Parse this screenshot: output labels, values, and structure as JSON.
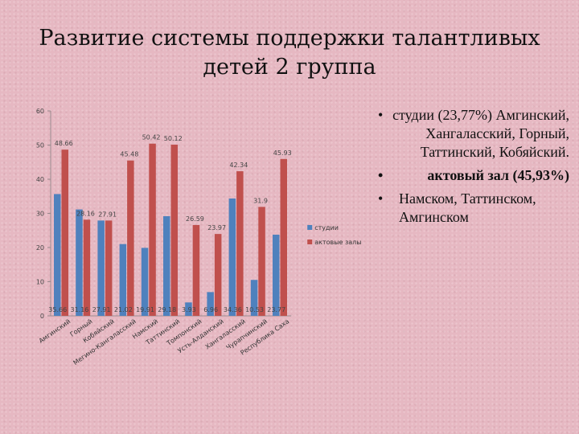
{
  "title": {
    "line1": "Развитие системы поддержки талантливых",
    "line2": "детей 2 группа"
  },
  "notes": [
    {
      "bullet": "•",
      "text": "студии (23,77%) Амгинский, Хангаласский, Горный, Таттинский, Кобяйский.",
      "bold": false
    },
    {
      "bullet": "•",
      "text": "актовый зал (45,93%)",
      "bold": true
    },
    {
      "bullet": "•",
      "text": "Намском, Таттинском, Амгинском",
      "bold": false
    }
  ],
  "colors": {
    "studios": "#4f81bd",
    "halls": "#c0504d",
    "axis": "#9a8a8e"
  },
  "chart_data": {
    "type": "bar",
    "categories": [
      "Амгинский",
      "Горный",
      "Кобяйский",
      "Мегино-Кангаласский",
      "Намский",
      "Таттинский",
      "Томпонский",
      "Усть-Алданский",
      "Хангаласский",
      "Чурапчинский",
      "Республика Саха"
    ],
    "series": [
      {
        "name": "студии",
        "color": "#4f81bd",
        "values": [
          35.66,
          31.16,
          27.91,
          21.02,
          19.91,
          29.18,
          3.93,
          6.96,
          34.36,
          10.53,
          23.77
        ]
      },
      {
        "name": "актовые залы",
        "color": "#c0504d",
        "values": [
          48.66,
          28.16,
          27.91,
          45.48,
          50.42,
          50.12,
          26.59,
          23.97,
          42.34,
          31.9,
          45.93
        ]
      }
    ],
    "value_labels": [
      [
        "35.66",
        "31.16",
        "27.91",
        "21.02",
        "19.91",
        "29.18",
        "3.93",
        "6.96",
        "34.36",
        "10.53",
        "23.77"
      ],
      [
        "48.66",
        "28.16",
        "27.91",
        "45.48",
        "50.42",
        "50.12",
        "26.59",
        "23.97",
        "42.34",
        "31.9",
        "45.93"
      ]
    ],
    "yticks": [
      0,
      10,
      20,
      30,
      40,
      50,
      60
    ],
    "ylim": [
      0,
      60
    ],
    "legend_position": "right",
    "grid": false
  }
}
